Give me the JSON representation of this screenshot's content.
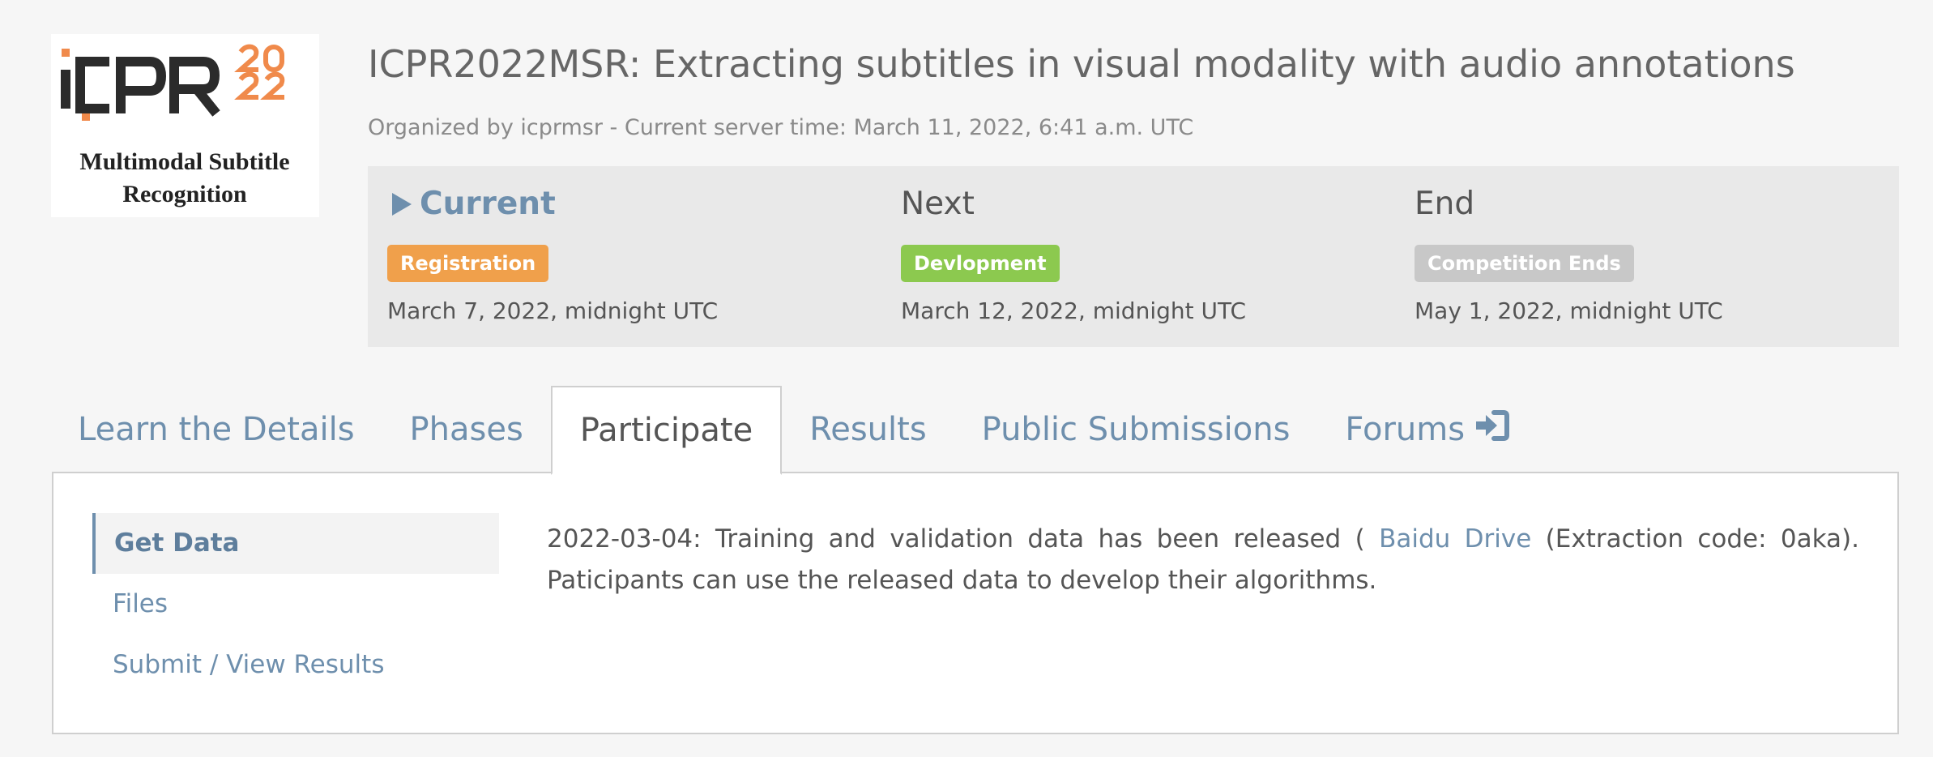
{
  "logo": {
    "alt_text_line1": "Multimodal Subtitle",
    "alt_text_line2": "Recognition",
    "brand_colors": {
      "dark": "#2b2b2b",
      "accent": "#f08a4b"
    }
  },
  "competition": {
    "title": "ICPR2022MSR: Extracting subtitles in visual modality with audio annotations",
    "organized_line": "Organized by icprmsr - Current server time: March 11, 2022, 6:41 a.m. UTC"
  },
  "phases": [
    {
      "heading": "Current",
      "badge": "Registration",
      "badge_color": "#f0a04b",
      "date": "March 7, 2022, midnight UTC"
    },
    {
      "heading": "Next",
      "badge": "Devlopment",
      "badge_color": "#8cc94f",
      "date": "March 12, 2022, midnight UTC"
    },
    {
      "heading": "End",
      "badge": "Competition Ends",
      "badge_color": "#c8c8c8",
      "date": "May 1, 2022, midnight UTC"
    }
  ],
  "tabs": [
    {
      "label": "Learn the Details"
    },
    {
      "label": "Phases"
    },
    {
      "label": "Participate",
      "active": true
    },
    {
      "label": "Results"
    },
    {
      "label": "Public Submissions"
    },
    {
      "label": "Forums",
      "icon": "sign-in-icon"
    }
  ],
  "side_nav": [
    {
      "label": "Get Data",
      "active": true
    },
    {
      "label": "Files"
    },
    {
      "label": "Submit / View Results"
    }
  ],
  "content": {
    "text_before": "2022-03-04: Training and validation data has been released ( ",
    "link_text": "Baidu Drive",
    "text_after": " (Extraction code: 0aka). Paticipants can use the released data to develop their algorithms."
  }
}
